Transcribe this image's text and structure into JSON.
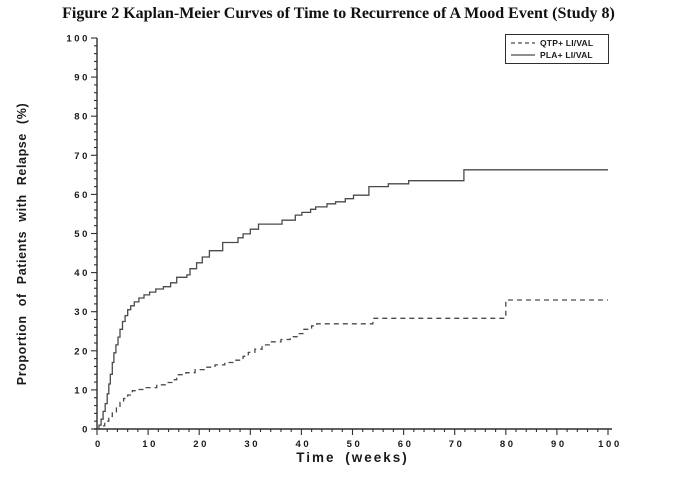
{
  "colors": {
    "background": "#ffffff",
    "text": "#1a1a1a",
    "axis": "#2f2f2f",
    "curve": "#4a4a4a"
  },
  "chart_data": {
    "type": "line",
    "subtype": "kaplan-meier-step",
    "title": "Figure 2 Kaplan-Meier Curves of Time to Recurrence of A Mood Event (Study 8)",
    "xlabel": "Time (weeks)",
    "ylabel": "Proportion of Patients with Relapse (%)",
    "xlim": [
      0,
      100
    ],
    "ylim": [
      0,
      100
    ],
    "x_ticks": [
      0,
      10,
      20,
      30,
      40,
      50,
      60,
      70,
      80,
      90,
      100
    ],
    "y_ticks": [
      0,
      10,
      20,
      30,
      40,
      50,
      60,
      70,
      80,
      90,
      100
    ],
    "minor_tick_interval": 2,
    "grid": false,
    "legend_position": "top-right",
    "series": [
      {
        "name": "QTP+ LI/VAL",
        "style": "dashed",
        "color": "#4a4a4a",
        "points": [
          [
            0,
            0
          ],
          [
            0.8,
            0.8
          ],
          [
            1.5,
            2
          ],
          [
            2.3,
            3.2
          ],
          [
            3,
            4.4
          ],
          [
            3.8,
            5.6
          ],
          [
            4.5,
            6.8
          ],
          [
            5.2,
            7.8
          ],
          [
            6,
            8.7
          ],
          [
            6.9,
            9.8
          ],
          [
            8,
            10.1
          ],
          [
            9.5,
            10.6
          ],
          [
            11.7,
            11.3
          ],
          [
            13.6,
            11.9
          ],
          [
            14.8,
            12.6
          ],
          [
            15.6,
            13.9
          ],
          [
            17.4,
            14.4
          ],
          [
            19.2,
            15.2
          ],
          [
            21,
            15.8
          ],
          [
            23.1,
            16.4
          ],
          [
            25,
            17
          ],
          [
            27,
            17.6
          ],
          [
            28.6,
            18.6
          ],
          [
            29.6,
            19.6
          ],
          [
            30.9,
            20.4
          ],
          [
            32.3,
            21.5
          ],
          [
            34,
            22.3
          ],
          [
            36,
            22.9
          ],
          [
            37.8,
            23.6
          ],
          [
            39.4,
            24.4
          ],
          [
            40.3,
            25.5
          ],
          [
            42,
            26.4
          ],
          [
            43,
            26.9
          ],
          [
            54,
            28.3
          ],
          [
            80,
            33
          ],
          [
            100,
            33
          ]
        ]
      },
      {
        "name": "PLA+ LI/VAL",
        "style": "solid",
        "color": "#4a4a4a",
        "points": [
          [
            0,
            0
          ],
          [
            0.4,
            1
          ],
          [
            0.8,
            2.5
          ],
          [
            1.2,
            4.5
          ],
          [
            1.6,
            6.5
          ],
          [
            2,
            9
          ],
          [
            2.3,
            11.5
          ],
          [
            2.6,
            14
          ],
          [
            3,
            17
          ],
          [
            3.3,
            19.5
          ],
          [
            3.7,
            21.5
          ],
          [
            4.1,
            23.5
          ],
          [
            4.5,
            25.5
          ],
          [
            5,
            27.5
          ],
          [
            5.5,
            29
          ],
          [
            6,
            30.5
          ],
          [
            6.6,
            31.5
          ],
          [
            7.3,
            32.5
          ],
          [
            8.2,
            33.5
          ],
          [
            9.2,
            34.3
          ],
          [
            10.3,
            35
          ],
          [
            11.5,
            35.8
          ],
          [
            13,
            36.4
          ],
          [
            14.4,
            37.4
          ],
          [
            15.6,
            38.8
          ],
          [
            17.6,
            39.4
          ],
          [
            18.2,
            41
          ],
          [
            19.5,
            42.5
          ],
          [
            20.6,
            44
          ],
          [
            22,
            45.6
          ],
          [
            24.6,
            47.7
          ],
          [
            27.6,
            48.9
          ],
          [
            28.6,
            49.9
          ],
          [
            30,
            51.1
          ],
          [
            31.6,
            52.4
          ],
          [
            36.2,
            53.4
          ],
          [
            38.8,
            54.7
          ],
          [
            40.1,
            55.4
          ],
          [
            41.8,
            56.2
          ],
          [
            42.8,
            56.8
          ],
          [
            45,
            57.6
          ],
          [
            46.7,
            58.1
          ],
          [
            48.6,
            58.9
          ],
          [
            50.2,
            59.8
          ],
          [
            53.2,
            62
          ],
          [
            57,
            62.7
          ],
          [
            61,
            63.5
          ],
          [
            71.8,
            66.3
          ],
          [
            100,
            66.3
          ]
        ]
      }
    ]
  }
}
